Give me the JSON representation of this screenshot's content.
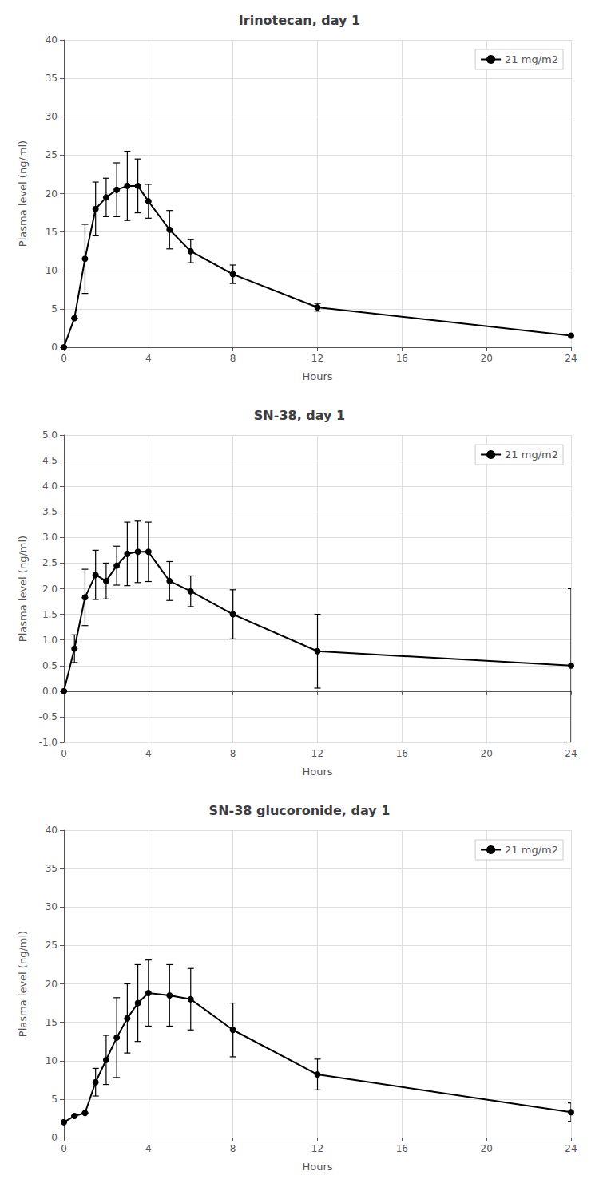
{
  "chart_data": [
    {
      "type": "line",
      "title": "Irinotecan, day 1",
      "xlabel": "Hours",
      "ylabel": "Plasma level (ng/ml)",
      "x": [
        0,
        0.5,
        1,
        1.5,
        2,
        2.5,
        3,
        3.5,
        4,
        5,
        6,
        8,
        12,
        24
      ],
      "series": [
        {
          "name": "21 mg/m2",
          "color": "#000000",
          "marker": "circle",
          "values": [
            0,
            3.8,
            11.5,
            18.0,
            19.5,
            20.5,
            21.0,
            21.0,
            19.0,
            15.3,
            12.5,
            9.5,
            5.2,
            1.5
          ],
          "yerr": [
            0,
            0,
            4.5,
            3.5,
            2.5,
            3.5,
            4.5,
            3.5,
            2.2,
            2.5,
            1.5,
            1.2,
            0.5,
            0
          ]
        }
      ],
      "xlim": [
        0,
        24
      ],
      "xticks": [
        0,
        4,
        8,
        12,
        16,
        20,
        24
      ],
      "ylim": [
        0,
        40
      ],
      "yticks": [
        0,
        5,
        10,
        15,
        20,
        25,
        30,
        35,
        40
      ],
      "grid": true,
      "legend": "upper right"
    },
    {
      "type": "line",
      "title": "SN-38, day 1",
      "xlabel": "Hours",
      "ylabel": "Plasma level (ng/ml)",
      "x": [
        0,
        0.5,
        1,
        1.5,
        2,
        2.5,
        3,
        3.5,
        4,
        5,
        6,
        8,
        12,
        24
      ],
      "series": [
        {
          "name": "21 mg/m2",
          "color": "#000000",
          "marker": "circle",
          "values": [
            0,
            0.83,
            1.83,
            2.27,
            2.15,
            2.45,
            2.68,
            2.72,
            2.72,
            2.15,
            1.95,
            1.5,
            0.78,
            0.5
          ],
          "yerr": [
            0,
            0.27,
            0.55,
            0.48,
            0.35,
            0.38,
            0.62,
            0.6,
            0.58,
            0.38,
            0.3,
            0.48,
            0.72,
            1.5
          ]
        }
      ],
      "xlim": [
        0,
        24
      ],
      "xticks": [
        0,
        4,
        8,
        12,
        16,
        20,
        24
      ],
      "ylim": [
        -1.0,
        5.0
      ],
      "yticks": [
        {
          "value": -1.0,
          "label": "-1.0"
        },
        -0.5,
        {
          "value": 0.0,
          "label": "0.0"
        },
        0.5,
        {
          "value": 1.0,
          "label": "1.0"
        },
        1.5,
        {
          "value": 2.0,
          "label": "2.0"
        },
        2.5,
        {
          "value": 3.0,
          "label": "3.0"
        },
        3.5,
        {
          "value": 4.0,
          "label": "4.0"
        },
        4.5,
        {
          "value": 5.0,
          "label": "5.0"
        }
      ],
      "grid": true,
      "legend": "upper right"
    },
    {
      "type": "line",
      "title": "SN-38 glucoronide, day 1",
      "xlabel": "Hours",
      "ylabel": "Plasma level (ng/ml)",
      "x": [
        0,
        0.5,
        1,
        1.5,
        2,
        2.5,
        3,
        3.5,
        4,
        5,
        6,
        8,
        12,
        24
      ],
      "series": [
        {
          "name": "21 mg/m2",
          "color": "#000000",
          "marker": "circle",
          "values": [
            2.0,
            2.8,
            3.2,
            7.2,
            10.1,
            13.0,
            15.5,
            17.5,
            18.8,
            18.5,
            18.0,
            14.0,
            8.2,
            3.3
          ],
          "yerr": [
            0,
            0,
            0,
            1.8,
            3.2,
            5.2,
            4.5,
            5.0,
            4.3,
            4.0,
            4.0,
            3.5,
            2.0,
            1.2
          ]
        }
      ],
      "xlim": [
        0,
        24
      ],
      "xticks": [
        0,
        4,
        8,
        12,
        16,
        20,
        24
      ],
      "ylim": [
        0,
        40
      ],
      "yticks": [
        0,
        5,
        10,
        15,
        20,
        25,
        30,
        35,
        40
      ],
      "grid": true,
      "legend": "upper right"
    }
  ]
}
